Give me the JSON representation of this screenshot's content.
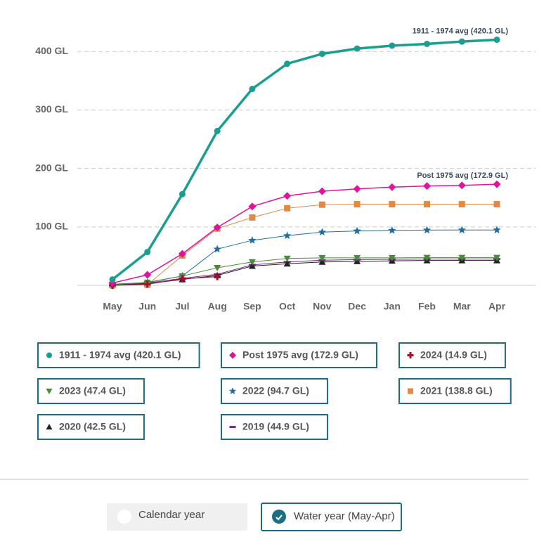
{
  "chart_data": {
    "type": "line",
    "categories": [
      "May",
      "Jun",
      "Jul",
      "Aug",
      "Sep",
      "Oct",
      "Nov",
      "Dec",
      "Jan",
      "Feb",
      "Mar",
      "Apr"
    ],
    "ylim": [
      0,
      440
    ],
    "yticks": [
      {
        "value": 100,
        "label": "100 GL"
      },
      {
        "value": 200,
        "label": "200 GL"
      },
      {
        "value": 300,
        "label": "300 GL"
      },
      {
        "value": 400,
        "label": "400 GL"
      }
    ],
    "grid": true,
    "series": [
      {
        "name": "1911 - 1974 avg (420.1 GL)",
        "color": "#1a9e8f",
        "marker": "circle",
        "line_width": 3.5,
        "annotated": true,
        "values": [
          10,
          57,
          156,
          264,
          336,
          379,
          396,
          405,
          410,
          413,
          417,
          420.1
        ]
      },
      {
        "name": "Post 1975 avg (172.9 GL)",
        "color": "#e0139a",
        "marker": "diamond",
        "line_width": 1.5,
        "annotated": true,
        "values": [
          4,
          18,
          54,
          99,
          135,
          153,
          161,
          165,
          168,
          170,
          171,
          172.9
        ]
      },
      {
        "name": "2024 (14.9 GL)",
        "color": "#a0102a",
        "marker": "plus",
        "line_width": 1,
        "values": [
          0,
          2,
          11,
          14.9,
          null,
          null,
          null,
          null,
          null,
          null,
          null,
          null
        ]
      },
      {
        "name": "2023 (47.4 GL)",
        "color": "#4a8a3a",
        "marker": "triangle-down",
        "line_width": 1,
        "values": [
          1,
          5,
          16,
          30,
          40,
          46,
          47,
          47,
          47,
          47.4,
          47.4,
          47.4
        ]
      },
      {
        "name": "2022 (94.7 GL)",
        "color": "#1f6fa0",
        "marker": "star",
        "line_width": 1,
        "values": [
          2,
          5,
          16,
          62,
          77,
          85,
          91,
          93,
          94,
          94.5,
          94.7,
          94.7
        ]
      },
      {
        "name": "2021 (138.8 GL)",
        "color": "#e08a4a",
        "marker": "square",
        "line_width": 1,
        "values": [
          0,
          1,
          51,
          97,
          116,
          132,
          138,
          138.8,
          138.8,
          138.8,
          138.8,
          138.8
        ]
      },
      {
        "name": "2020 (42.5 GL)",
        "color": "#222222",
        "marker": "triangle-up",
        "line_width": 1,
        "values": [
          0,
          3,
          10,
          17,
          33,
          37,
          40,
          41,
          42,
          42.5,
          42.5,
          42.5
        ]
      },
      {
        "name": "2019 (44.9 GL)",
        "color": "#7a2a8a",
        "marker": "dash",
        "line_width": 1,
        "values": [
          0,
          4,
          12,
          19,
          35,
          40,
          43,
          44,
          44.5,
          44.9,
          44.9,
          44.9
        ]
      }
    ]
  },
  "controls": {
    "options": [
      "Calendar year",
      "Water year (May-Apr)"
    ],
    "selected": 1
  }
}
